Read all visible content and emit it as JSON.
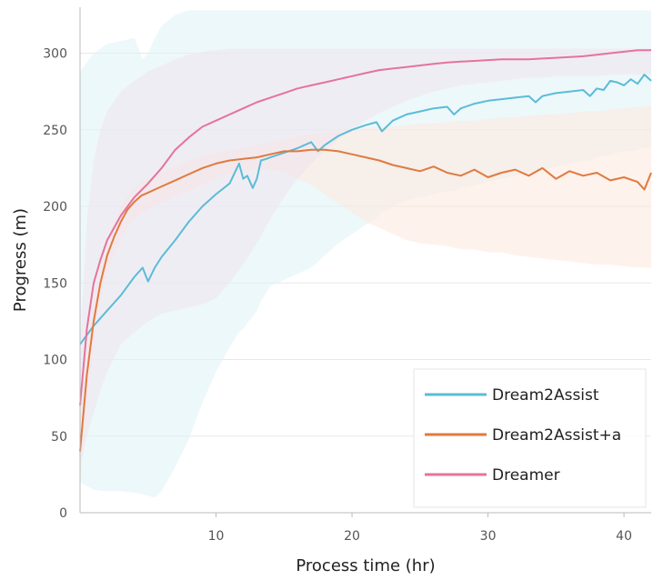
{
  "chart_data": {
    "type": "line",
    "title": "",
    "xlabel": "Process time (hr)",
    "ylabel": "Progress (m)",
    "xlim": [
      0,
      42
    ],
    "ylim": [
      0,
      330
    ],
    "xticks": [
      10,
      20,
      30,
      40
    ],
    "yticks": [
      0,
      50,
      100,
      150,
      200,
      250,
      300
    ],
    "grid": "horizontal",
    "legend_position": "lower-right",
    "series": [
      {
        "name": "Dream2Assist",
        "color": "#5bbcd6",
        "band_color": "#dff2f8",
        "x": [
          0,
          1,
          2,
          3,
          4,
          4.6,
          5,
          5.5,
          6,
          7,
          8,
          9,
          10,
          11,
          11.7,
          12,
          12.3,
          12.7,
          13,
          13.3,
          13.7,
          14,
          15,
          16,
          17,
          17.5,
          18,
          19,
          20,
          21,
          21.8,
          22.2,
          23,
          24,
          25,
          26,
          27,
          27.5,
          28,
          29,
          30,
          31,
          32,
          33,
          33.5,
          34,
          35,
          36,
          37,
          37.5,
          38,
          38.5,
          39,
          39.5,
          40,
          40.5,
          41,
          41.5,
          42
        ],
        "y": [
          110,
          122,
          132,
          142,
          154,
          160,
          151,
          160,
          167,
          178,
          190,
          200,
          208,
          215,
          228,
          218,
          220,
          212,
          218,
          230,
          231,
          232,
          235,
          238,
          242,
          236,
          240,
          246,
          250,
          253,
          255,
          249,
          256,
          260,
          262,
          264,
          265,
          260,
          264,
          267,
          269,
          270,
          271,
          272,
          268,
          272,
          274,
          275,
          276,
          272,
          277,
          276,
          282,
          281,
          279,
          283,
          280,
          286,
          282
        ],
        "band_upper": [
          288,
          300,
          306,
          308,
          310,
          296,
          300,
          310,
          318,
          325,
          328,
          328,
          328,
          328,
          328,
          328,
          328,
          328,
          328,
          328,
          328,
          328,
          328,
          328,
          328,
          328,
          328,
          328,
          328,
          328,
          328,
          328,
          328,
          328,
          328,
          328,
          328,
          328,
          328,
          328,
          328,
          328,
          328,
          328,
          328,
          328,
          328,
          328,
          328,
          328,
          328,
          328,
          328,
          328,
          328,
          328,
          328,
          328,
          328
        ],
        "band_lower": [
          20,
          15,
          14,
          14,
          13,
          12,
          11,
          10,
          14,
          30,
          48,
          72,
          92,
          108,
          118,
          120,
          124,
          128,
          132,
          138,
          144,
          148,
          152,
          156,
          160,
          164,
          168,
          176,
          182,
          188,
          192,
          196,
          200,
          204,
          206,
          208,
          210,
          210,
          212,
          214,
          216,
          218,
          220,
          222,
          222,
          224,
          226,
          228,
          230,
          230,
          232,
          233,
          234,
          235,
          236,
          236,
          237,
          238,
          238
        ]
      },
      {
        "name": "Dream2Assist+a",
        "color": "#e07a3f",
        "band_color": "#fde7dc",
        "x": [
          0,
          0.5,
          1,
          1.5,
          2,
          2.5,
          3,
          3.5,
          4,
          4.5,
          5,
          5.5,
          6,
          7,
          8,
          9,
          10,
          11,
          12,
          13,
          14,
          15,
          16,
          17,
          18,
          19,
          20,
          21,
          22,
          23,
          24,
          25,
          26,
          27,
          28,
          29,
          30,
          31,
          32,
          33,
          34,
          35,
          36,
          37,
          38,
          39,
          40,
          41,
          41.5,
          42
        ],
        "y": [
          40,
          90,
          125,
          150,
          168,
          180,
          190,
          198,
          203,
          207,
          209,
          211,
          213,
          217,
          221,
          225,
          228,
          230,
          231,
          232,
          234,
          236,
          236,
          237,
          237,
          236,
          234,
          232,
          230,
          227,
          225,
          223,
          226,
          222,
          220,
          224,
          219,
          222,
          224,
          220,
          225,
          218,
          223,
          220,
          222,
          217,
          219,
          216,
          211,
          222
        ],
        "band_upper": [
          60,
          110,
          140,
          160,
          178,
          190,
          200,
          207,
          212,
          216,
          218,
          220,
          222,
          226,
          230,
          233,
          235,
          237,
          238,
          240,
          242,
          244,
          246,
          247,
          248,
          249,
          250,
          251,
          252,
          252,
          253,
          254,
          254,
          255,
          256,
          256,
          257,
          258,
          258,
          259,
          260,
          260,
          261,
          262,
          262,
          263,
          264,
          265,
          265,
          266
        ],
        "band_lower": [
          20,
          70,
          110,
          138,
          156,
          168,
          178,
          186,
          192,
          196,
          198,
          200,
          202,
          206,
          210,
          214,
          218,
          221,
          223,
          224,
          224,
          222,
          218,
          214,
          208,
          202,
          196,
          190,
          186,
          182,
          178,
          176,
          175,
          174,
          172,
          172,
          170,
          170,
          168,
          167,
          166,
          165,
          164,
          163,
          162,
          162,
          161,
          160,
          160,
          160
        ]
      },
      {
        "name": "Dreamer",
        "color": "#e5739b",
        "band_color": "#f0e4ee",
        "x": [
          0,
          0.5,
          1,
          1.5,
          2,
          3,
          4,
          5,
          6,
          7,
          8,
          9,
          10,
          11,
          12,
          13,
          14,
          15,
          16,
          17,
          18,
          19,
          20,
          21,
          22,
          23,
          24,
          25,
          26,
          27,
          28,
          29,
          30,
          31,
          32,
          33,
          34,
          35,
          36,
          37,
          38,
          39,
          40,
          41,
          42
        ],
        "y": [
          70,
          120,
          150,
          165,
          178,
          194,
          206,
          215,
          225,
          237,
          245,
          252,
          256,
          260,
          264,
          268,
          271,
          274,
          277,
          279,
          281,
          283,
          285,
          287,
          289,
          290,
          291,
          292,
          293,
          294,
          294.5,
          295,
          295.5,
          296,
          296,
          296,
          296.5,
          297,
          297.5,
          298,
          299,
          300,
          301,
          302,
          302
        ],
        "band_upper": [
          110,
          190,
          230,
          250,
          262,
          275,
          282,
          288,
          292,
          296,
          299,
          301,
          302,
          303,
          303,
          303,
          303,
          303,
          303,
          303,
          303,
          303,
          303,
          303,
          303,
          303,
          303,
          303,
          303,
          303,
          303,
          303,
          303,
          303,
          303,
          303,
          303,
          303,
          303,
          303,
          303,
          303,
          303,
          303,
          303
        ],
        "band_lower": [
          30,
          50,
          65,
          80,
          92,
          110,
          118,
          125,
          130,
          132,
          134,
          136,
          140,
          150,
          162,
          176,
          192,
          206,
          218,
          228,
          236,
          244,
          250,
          256,
          261,
          265,
          269,
          272,
          275,
          277,
          279,
          280,
          281,
          282,
          283,
          284,
          284,
          285,
          285,
          285,
          285,
          286,
          286,
          286,
          286
        ]
      }
    ]
  }
}
